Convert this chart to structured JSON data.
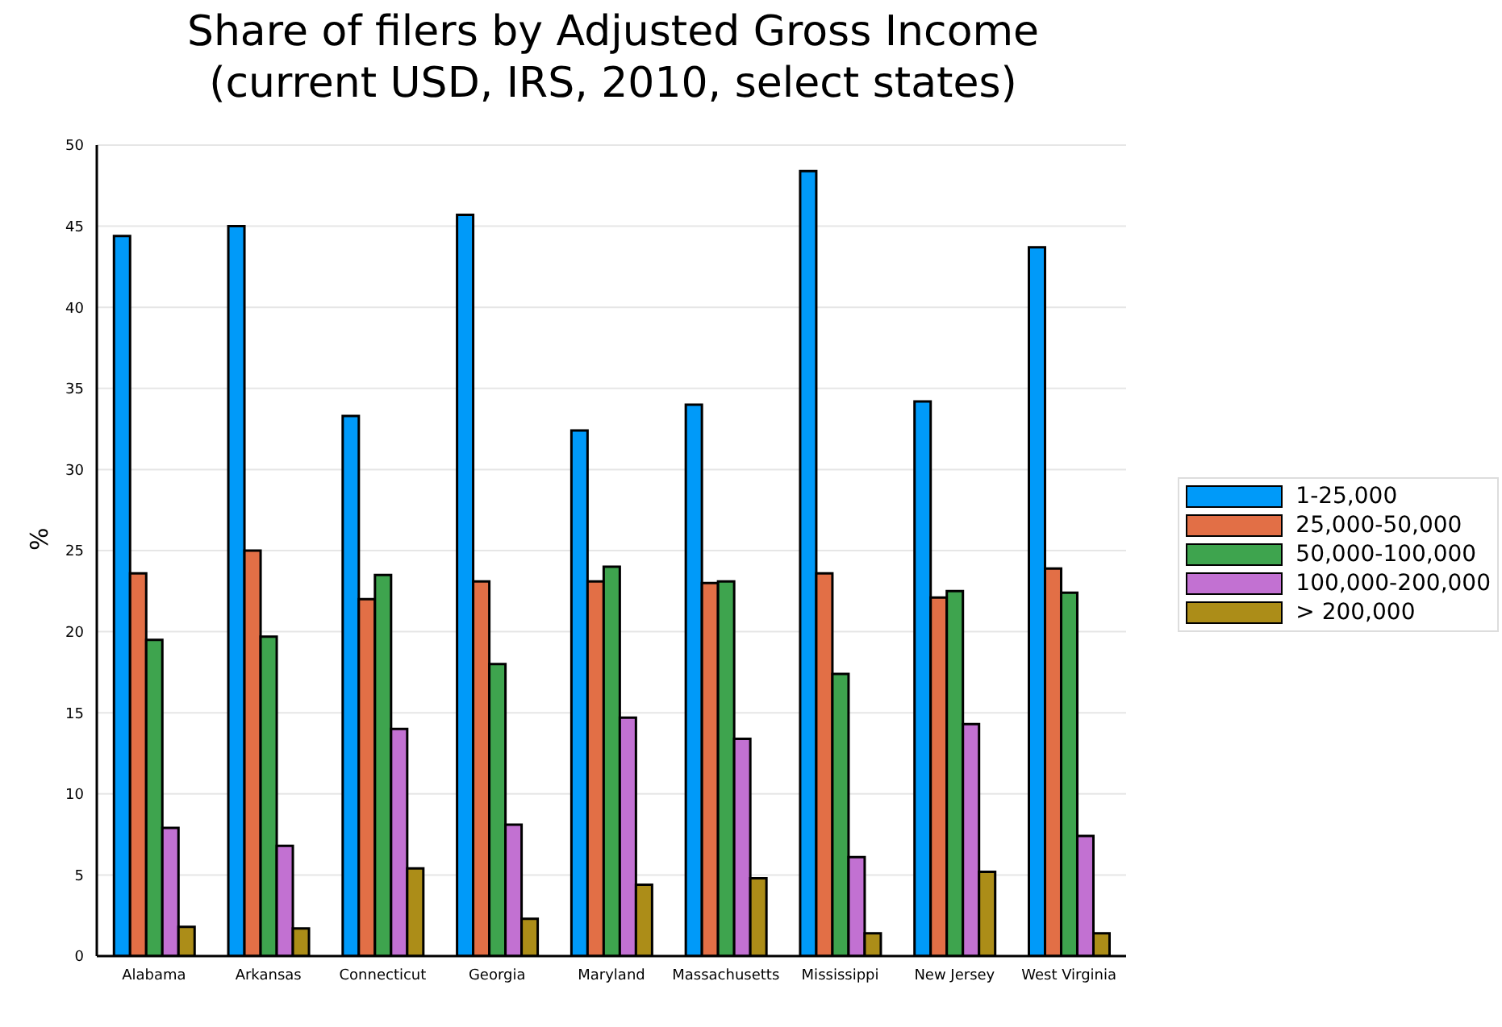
{
  "chart_data": {
    "type": "bar",
    "title": "Share of filers by Adjusted Gross Income\n(current USD, IRS, 2010, select states)",
    "ylabel": "%",
    "categories": [
      "Alabama",
      "Arkansas",
      "Connecticut",
      "Georgia",
      "Maryland",
      "Massachusetts",
      "Mississippi",
      "New Jersey",
      "West Virginia"
    ],
    "series": [
      {
        "name": "1-25,000",
        "color": "#009af9",
        "values": [
          44.4,
          45.0,
          33.3,
          45.7,
          32.4,
          34.0,
          48.4,
          34.2,
          43.7
        ]
      },
      {
        "name": "25,000-50,000",
        "color": "#e26f46",
        "values": [
          23.6,
          25.0,
          22.0,
          23.1,
          23.1,
          23.0,
          23.6,
          22.1,
          23.9
        ]
      },
      {
        "name": "50,000-100,000",
        "color": "#3ea44e",
        "values": [
          19.5,
          19.7,
          23.5,
          18.0,
          24.0,
          23.1,
          17.4,
          22.5,
          22.4
        ]
      },
      {
        "name": "100,000-200,000",
        "color": "#c271d2",
        "values": [
          7.9,
          6.8,
          14.0,
          8.1,
          14.7,
          13.4,
          6.1,
          14.3,
          7.4
        ]
      },
      {
        "name": "> 200,000",
        "color": "#ac8d18",
        "values": [
          1.8,
          1.7,
          5.4,
          2.3,
          4.4,
          4.8,
          1.4,
          5.2,
          1.4
        ]
      }
    ],
    "ylim": [
      0,
      50
    ],
    "yticks": [
      0,
      5,
      10,
      15,
      20,
      25,
      30,
      35,
      40,
      45,
      50
    ],
    "grid": "y",
    "legend": "right"
  }
}
